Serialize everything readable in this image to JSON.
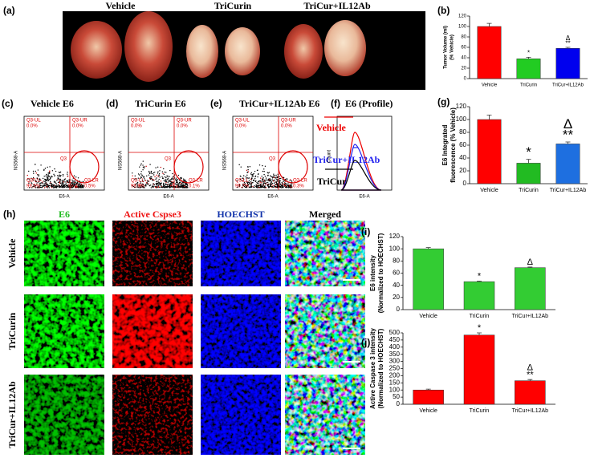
{
  "photo": {
    "label": "(a)",
    "groups": [
      "Vehicle",
      "TriCurin",
      "TriCur+IL12Ab"
    ]
  },
  "flow_panels": [
    {
      "label": "(c)",
      "title": "Vehicle E6",
      "ul": "Q3-UL",
      "ul_pct": "0.0%",
      "ur": "Q3-UR",
      "ur_pct": "0.0%",
      "gate": "Q3",
      "ll": "Q3-LL",
      "ll_pct": "99.5%",
      "lr": "Q3-LR",
      "lr_pct": "0.5%",
      "x_label": "E6-A",
      "y_label": "NS568-A"
    },
    {
      "label": "(d)",
      "title": "TriCurin E6",
      "ul": "Q3-UL",
      "ul_pct": "0.0%",
      "ur": "Q3-UR",
      "ur_pct": "0.0%",
      "gate": "Q3",
      "ll": "Q3-LL",
      "ll_pct": "99.9%",
      "lr": "Q3-LR",
      "lr_pct": "0.1%",
      "x_label": "E6-A",
      "y_label": "NS568-A"
    },
    {
      "label": "(e)",
      "title": "TriCur+IL12Ab E6",
      "ul": "Q3-UL",
      "ul_pct": "0.0%",
      "ur": "Q3-UR",
      "ur_pct": "0.0%",
      "gate": "Q3",
      "ll": "Q3-LL",
      "ll_pct": "99.7%",
      "lr": "Q3-LR",
      "lr_pct": "0.3%",
      "x_label": "E6-A",
      "y_label": "NS568-A"
    }
  ],
  "profile": {
    "label": "(f)",
    "title": "E6 (Profile)",
    "series": [
      "Vehicle",
      "TriCur+IL12Ab",
      "TriCur"
    ],
    "x_label": "E6-A",
    "y_label": "Count"
  },
  "micrographs": {
    "label": "(h)",
    "columns": [
      "E6",
      "Active Cspse3",
      "HOECHST",
      "Merged"
    ],
    "rows": [
      "Vehicle",
      "TriCurin",
      "TriCur+IL12Ab"
    ]
  },
  "chart_data": [
    {
      "type": "bar",
      "label": "(b)",
      "ylabel": [
        "Tumor Volume (ml)",
        "(% Vehicle)"
      ],
      "categories": [
        "Vehicle",
        "TriCurin",
        "TriCur+IL12Ab"
      ],
      "values": [
        100,
        38,
        58
      ],
      "errors": [
        6,
        3,
        2
      ],
      "colors": [
        "#ff0000",
        "#22cc22",
        "#0000ee"
      ],
      "ylim": [
        0,
        120
      ],
      "yticks": [
        0,
        20,
        40,
        60,
        80,
        100,
        120
      ],
      "annotations": [
        {
          "category": "TriCurin",
          "text": "*"
        },
        {
          "category": "TriCur+IL12Ab",
          "text": "**"
        },
        {
          "category": "TriCur+IL12Ab",
          "text": "Δ"
        }
      ]
    },
    {
      "type": "bar",
      "label": "(g)",
      "ylabel": [
        "E6 Integrated",
        "fluorescence (% Vehicle)"
      ],
      "categories": [
        "Vehicle",
        "TriCurin",
        "TriCur+IL12Ab"
      ],
      "values": [
        100,
        32,
        62
      ],
      "errors": [
        7,
        6,
        3
      ],
      "colors": [
        "#ff0000",
        "#22bb22",
        "#1e6fe0"
      ],
      "ylim": [
        0,
        120
      ],
      "yticks": [
        0,
        20,
        40,
        60,
        80,
        100,
        120
      ],
      "annotations": [
        {
          "category": "TriCurin",
          "text": "*"
        },
        {
          "category": "TriCur+IL12Ab",
          "text": "**"
        },
        {
          "category": "TriCur+IL12Ab",
          "text": "Δ"
        }
      ]
    },
    {
      "type": "bar",
      "label": "(i)",
      "ylabel": [
        "E6 intensity",
        "(Normalized to HOECHST)"
      ],
      "categories": [
        "Vehicle",
        "TriCurin",
        "TriCur+IL12Ab"
      ],
      "values": [
        100,
        46,
        69
      ],
      "errors": [
        2,
        1,
        1
      ],
      "colors": [
        "#33cc33",
        "#33cc33",
        "#33cc33"
      ],
      "ylim": [
        0,
        120
      ],
      "yticks": [
        0,
        20,
        40,
        60,
        80,
        100,
        120
      ],
      "annotations": [
        {
          "category": "TriCurin",
          "text": "*"
        },
        {
          "category": "TriCur+IL12Ab",
          "text": "Δ"
        }
      ]
    },
    {
      "type": "bar",
      "label": "(j)",
      "ylabel": [
        "Active Caspase 3 intensity",
        "(Normalized to HOECHST)"
      ],
      "categories": [
        "Vehicle",
        "TriCurin",
        "TriCur+IL12Ab"
      ],
      "values": [
        100,
        485,
        165
      ],
      "errors": [
        6,
        15,
        8
      ],
      "colors": [
        "#ff0000",
        "#ff0000",
        "#ff0000"
      ],
      "ylim": [
        0,
        500
      ],
      "yticks": [
        0,
        50,
        100,
        150,
        200,
        250,
        300,
        350,
        400,
        450,
        500
      ],
      "annotations": [
        {
          "category": "TriCurin",
          "text": "*"
        },
        {
          "category": "TriCur+IL12Ab",
          "text": "**"
        },
        {
          "category": "TriCur+IL12Ab",
          "text": "Δ"
        }
      ]
    }
  ]
}
